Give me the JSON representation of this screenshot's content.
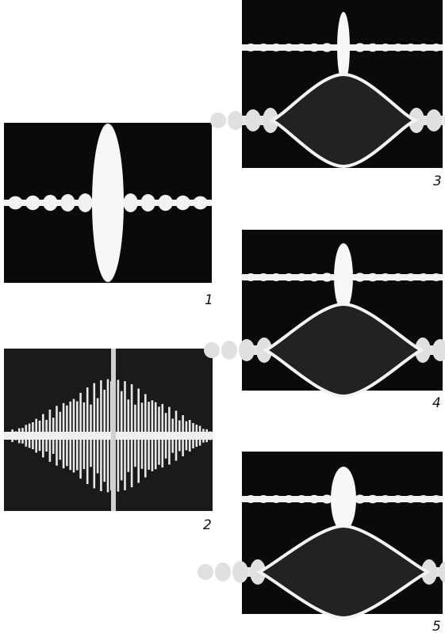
{
  "panels": [
    {
      "label": "1"
    },
    {
      "label": "2"
    },
    {
      "label": "3"
    },
    {
      "label": "4"
    },
    {
      "label": "5"
    }
  ]
}
